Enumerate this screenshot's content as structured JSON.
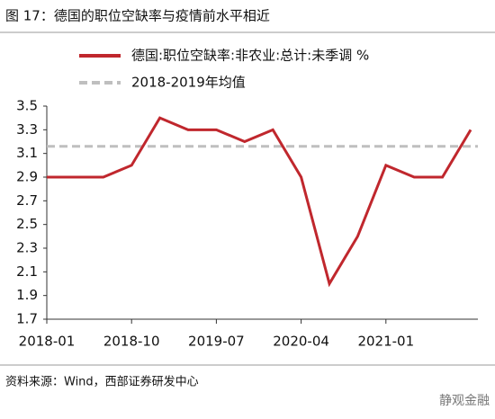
{
  "chart_data": {
    "type": "line",
    "title": "图 17：德国的职位空缺率与疫情前水平相近",
    "categories": [
      "2018-01",
      null,
      null,
      "2018-10",
      null,
      null,
      "2019-07",
      null,
      null,
      "2020-04",
      null,
      null,
      "2021-01",
      null,
      null,
      null
    ],
    "series": [
      {
        "name": "德国:职位空缺率:非农业:总计:未季调 %",
        "color": "#c0272d",
        "values": [
          2.9,
          2.9,
          2.9,
          3.0,
          3.4,
          3.3,
          3.3,
          3.2,
          3.3,
          2.9,
          2.0,
          2.4,
          3.0,
          2.9,
          2.9,
          3.3
        ]
      }
    ],
    "reference_lines": [
      {
        "name": "2018-2019年均值",
        "value": 3.16,
        "color": "#bfbfbf"
      }
    ],
    "ylim": [
      1.7,
      3.5
    ],
    "yticks": [
      1.7,
      1.9,
      2.1,
      2.3,
      2.5,
      2.7,
      2.9,
      3.1,
      3.3,
      3.5
    ],
    "source": "资料来源：Wind，西部证券研发中心",
    "watermark": "静观金融"
  }
}
